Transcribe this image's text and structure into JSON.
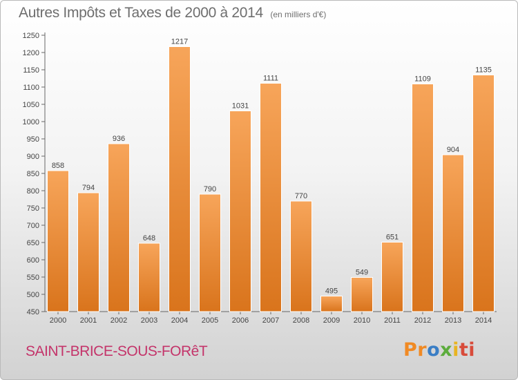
{
  "header": {
    "title": "Autres Impôts et Taxes de 2000 à 2014",
    "subtitle": "(en milliers d'€)"
  },
  "footer": {
    "commune": "SAINT-BRICE-SOUS-FORêT",
    "logo_parts": [
      "Pr",
      "o",
      "x",
      "i",
      "ti"
    ]
  },
  "colors": {
    "bar_top": "#f7a55a",
    "bar_bottom": "#d9741c",
    "accent_text": "#c4346a"
  },
  "chart_data": {
    "type": "bar",
    "title": "Autres Impôts et Taxes de 2000 à 2014",
    "subtitle": "(en milliers d'€)",
    "categories": [
      "2000",
      "2001",
      "2002",
      "2003",
      "2004",
      "2005",
      "2006",
      "2007",
      "2008",
      "2009",
      "2010",
      "2011",
      "2012",
      "2013",
      "2014"
    ],
    "values": [
      858,
      794,
      936,
      648,
      1217,
      790,
      1031,
      1111,
      770,
      495,
      549,
      651,
      1109,
      904,
      1135
    ],
    "ylim": [
      450,
      1250
    ],
    "yticks": [
      450,
      500,
      550,
      600,
      650,
      700,
      750,
      800,
      850,
      900,
      950,
      1000,
      1050,
      1100,
      1150,
      1200,
      1250
    ],
    "grid": false,
    "legend": "none"
  }
}
